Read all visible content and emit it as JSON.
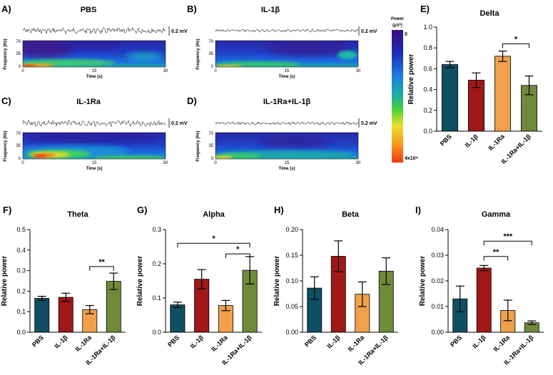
{
  "colors": {
    "PBS": "#0f4f63",
    "IL-1β": "#a01818",
    "IL-1Ra": "#f0a04b",
    "IL-1Ra+IL-1β": "#6f8a3a"
  },
  "spectrograms": [
    {
      "letter": "A)",
      "title": "PBS",
      "scale_label": "0.2 mV",
      "freq_label": "Frequency (Hz)",
      "time_label": "Time (s)",
      "y_ticks": [
        "70",
        "35",
        "0"
      ],
      "x_ticks": [
        "0",
        "15",
        "30"
      ]
    },
    {
      "letter": "B)",
      "title": "IL-1β",
      "scale_label": "0.2 mV",
      "freq_label": "Frequency (Hz)",
      "time_label": "Time (s)",
      "y_ticks": [
        "70",
        "35",
        "0"
      ],
      "x_ticks": [
        "0",
        "15",
        "30"
      ]
    },
    {
      "letter": "C)",
      "title": "IL-1Ra",
      "scale_label": "0.2 mV",
      "freq_label": "Frequency (Hz)",
      "time_label": "Time (s)",
      "y_ticks": [
        "70",
        "35",
        "0"
      ],
      "x_ticks": [
        "0",
        "15",
        "30"
      ]
    },
    {
      "letter": "D)",
      "title": "IL-1Ra+IL-1β",
      "scale_label": "0.2 mV",
      "freq_label": "Frequency (Hz)",
      "time_label": "Time (s)",
      "y_ticks": [
        "70",
        "35",
        "0"
      ],
      "x_ticks": [
        "0",
        "15",
        "30"
      ]
    }
  ],
  "colorbar": {
    "title_line1": "Power",
    "title_line2": "(μV²)",
    "top_label": "0",
    "bottom_label": "4x10⁴"
  },
  "chart_data": [
    {
      "id": "delta",
      "letter": "E)",
      "type": "bar",
      "title": "Delta",
      "ylabel": "Relative power",
      "ylim": [
        0,
        1.0
      ],
      "yticks": [
        "0.0",
        "0.2",
        "0.4",
        "0.6",
        "0.8",
        "1.0"
      ],
      "yticks_values": [
        0,
        0.2,
        0.4,
        0.6,
        0.8,
        1.0
      ],
      "categories": [
        "PBS",
        "IL-1β",
        "IL-1Ra",
        "IL-1Ra+IL-1β"
      ],
      "values": [
        0.64,
        0.49,
        0.72,
        0.44
      ],
      "errors": [
        0.03,
        0.07,
        0.05,
        0.09
      ],
      "significance": [
        {
          "from": 2,
          "to": 3,
          "label": "*",
          "y": 0.84
        }
      ]
    },
    {
      "id": "theta",
      "letter": "F)",
      "type": "bar",
      "title": "Theta",
      "ylabel": "Relative power",
      "ylim": [
        0,
        0.5
      ],
      "yticks": [
        "0.0",
        "0.1",
        "0.2",
        "0.3",
        "0.4",
        "0.5"
      ],
      "yticks_values": [
        0,
        0.1,
        0.2,
        0.3,
        0.4,
        0.5
      ],
      "categories": [
        "PBS",
        "IL-1β",
        "IL-1Ra",
        "IL-1Ra+IL-1β"
      ],
      "values": [
        0.165,
        0.17,
        0.11,
        0.248
      ],
      "errors": [
        0.01,
        0.02,
        0.02,
        0.04
      ],
      "significance": [
        {
          "from": 2,
          "to": 3,
          "label": "**",
          "y": 0.32
        }
      ]
    },
    {
      "id": "alpha",
      "letter": "G)",
      "type": "bar",
      "title": "Alpha",
      "ylabel": "Relative power",
      "ylim": [
        0,
        0.3
      ],
      "yticks": [
        "0.0",
        "0.1",
        "0.2",
        "0.3"
      ],
      "yticks_values": [
        0,
        0.1,
        0.2,
        0.3
      ],
      "categories": [
        "PBS",
        "IL-1β",
        "IL-1Ra",
        "IL-1Ra+IL-1β"
      ],
      "values": [
        0.08,
        0.155,
        0.078,
        0.181
      ],
      "errors": [
        0.008,
        0.028,
        0.015,
        0.04
      ],
      "significance": [
        {
          "from": 0,
          "to": 3,
          "label": "*",
          "y": 0.26
        },
        {
          "from": 2,
          "to": 3,
          "label": "*",
          "y": 0.229
        }
      ]
    },
    {
      "id": "beta",
      "letter": "H)",
      "type": "bar",
      "title": "Beta",
      "ylabel": "Relative power",
      "ylim": [
        0,
        0.2
      ],
      "yticks": [
        "0.00",
        "0.05",
        "0.10",
        "0.15",
        "0.20"
      ],
      "yticks_values": [
        0,
        0.05,
        0.1,
        0.15,
        0.2
      ],
      "categories": [
        "PBS",
        "IL-1β",
        "IL-1Ra",
        "IL-1Ra+IL-1β"
      ],
      "values": [
        0.086,
        0.148,
        0.074,
        0.119
      ],
      "errors": [
        0.022,
        0.03,
        0.024,
        0.026
      ],
      "significance": []
    },
    {
      "id": "gamma",
      "letter": "I)",
      "type": "bar",
      "title": "Gamma",
      "ylabel": "Relative power",
      "ylim": [
        0,
        0.04
      ],
      "yticks": [
        "0.00",
        "0.01",
        "0.02",
        "0.03",
        "0.04"
      ],
      "yticks_values": [
        0,
        0.01,
        0.02,
        0.03,
        0.04
      ],
      "categories": [
        "PBS",
        "IL-1β",
        "IL-1Ra",
        "IL-1Ra+IL-1β"
      ],
      "values": [
        0.013,
        0.025,
        0.0085,
        0.0037
      ],
      "errors": [
        0.005,
        0.001,
        0.004,
        0.0007
      ],
      "significance": [
        {
          "from": 1,
          "to": 3,
          "label": "***",
          "y": 0.0355
        },
        {
          "from": 1,
          "to": 2,
          "label": "**",
          "y": 0.0295
        }
      ]
    }
  ]
}
